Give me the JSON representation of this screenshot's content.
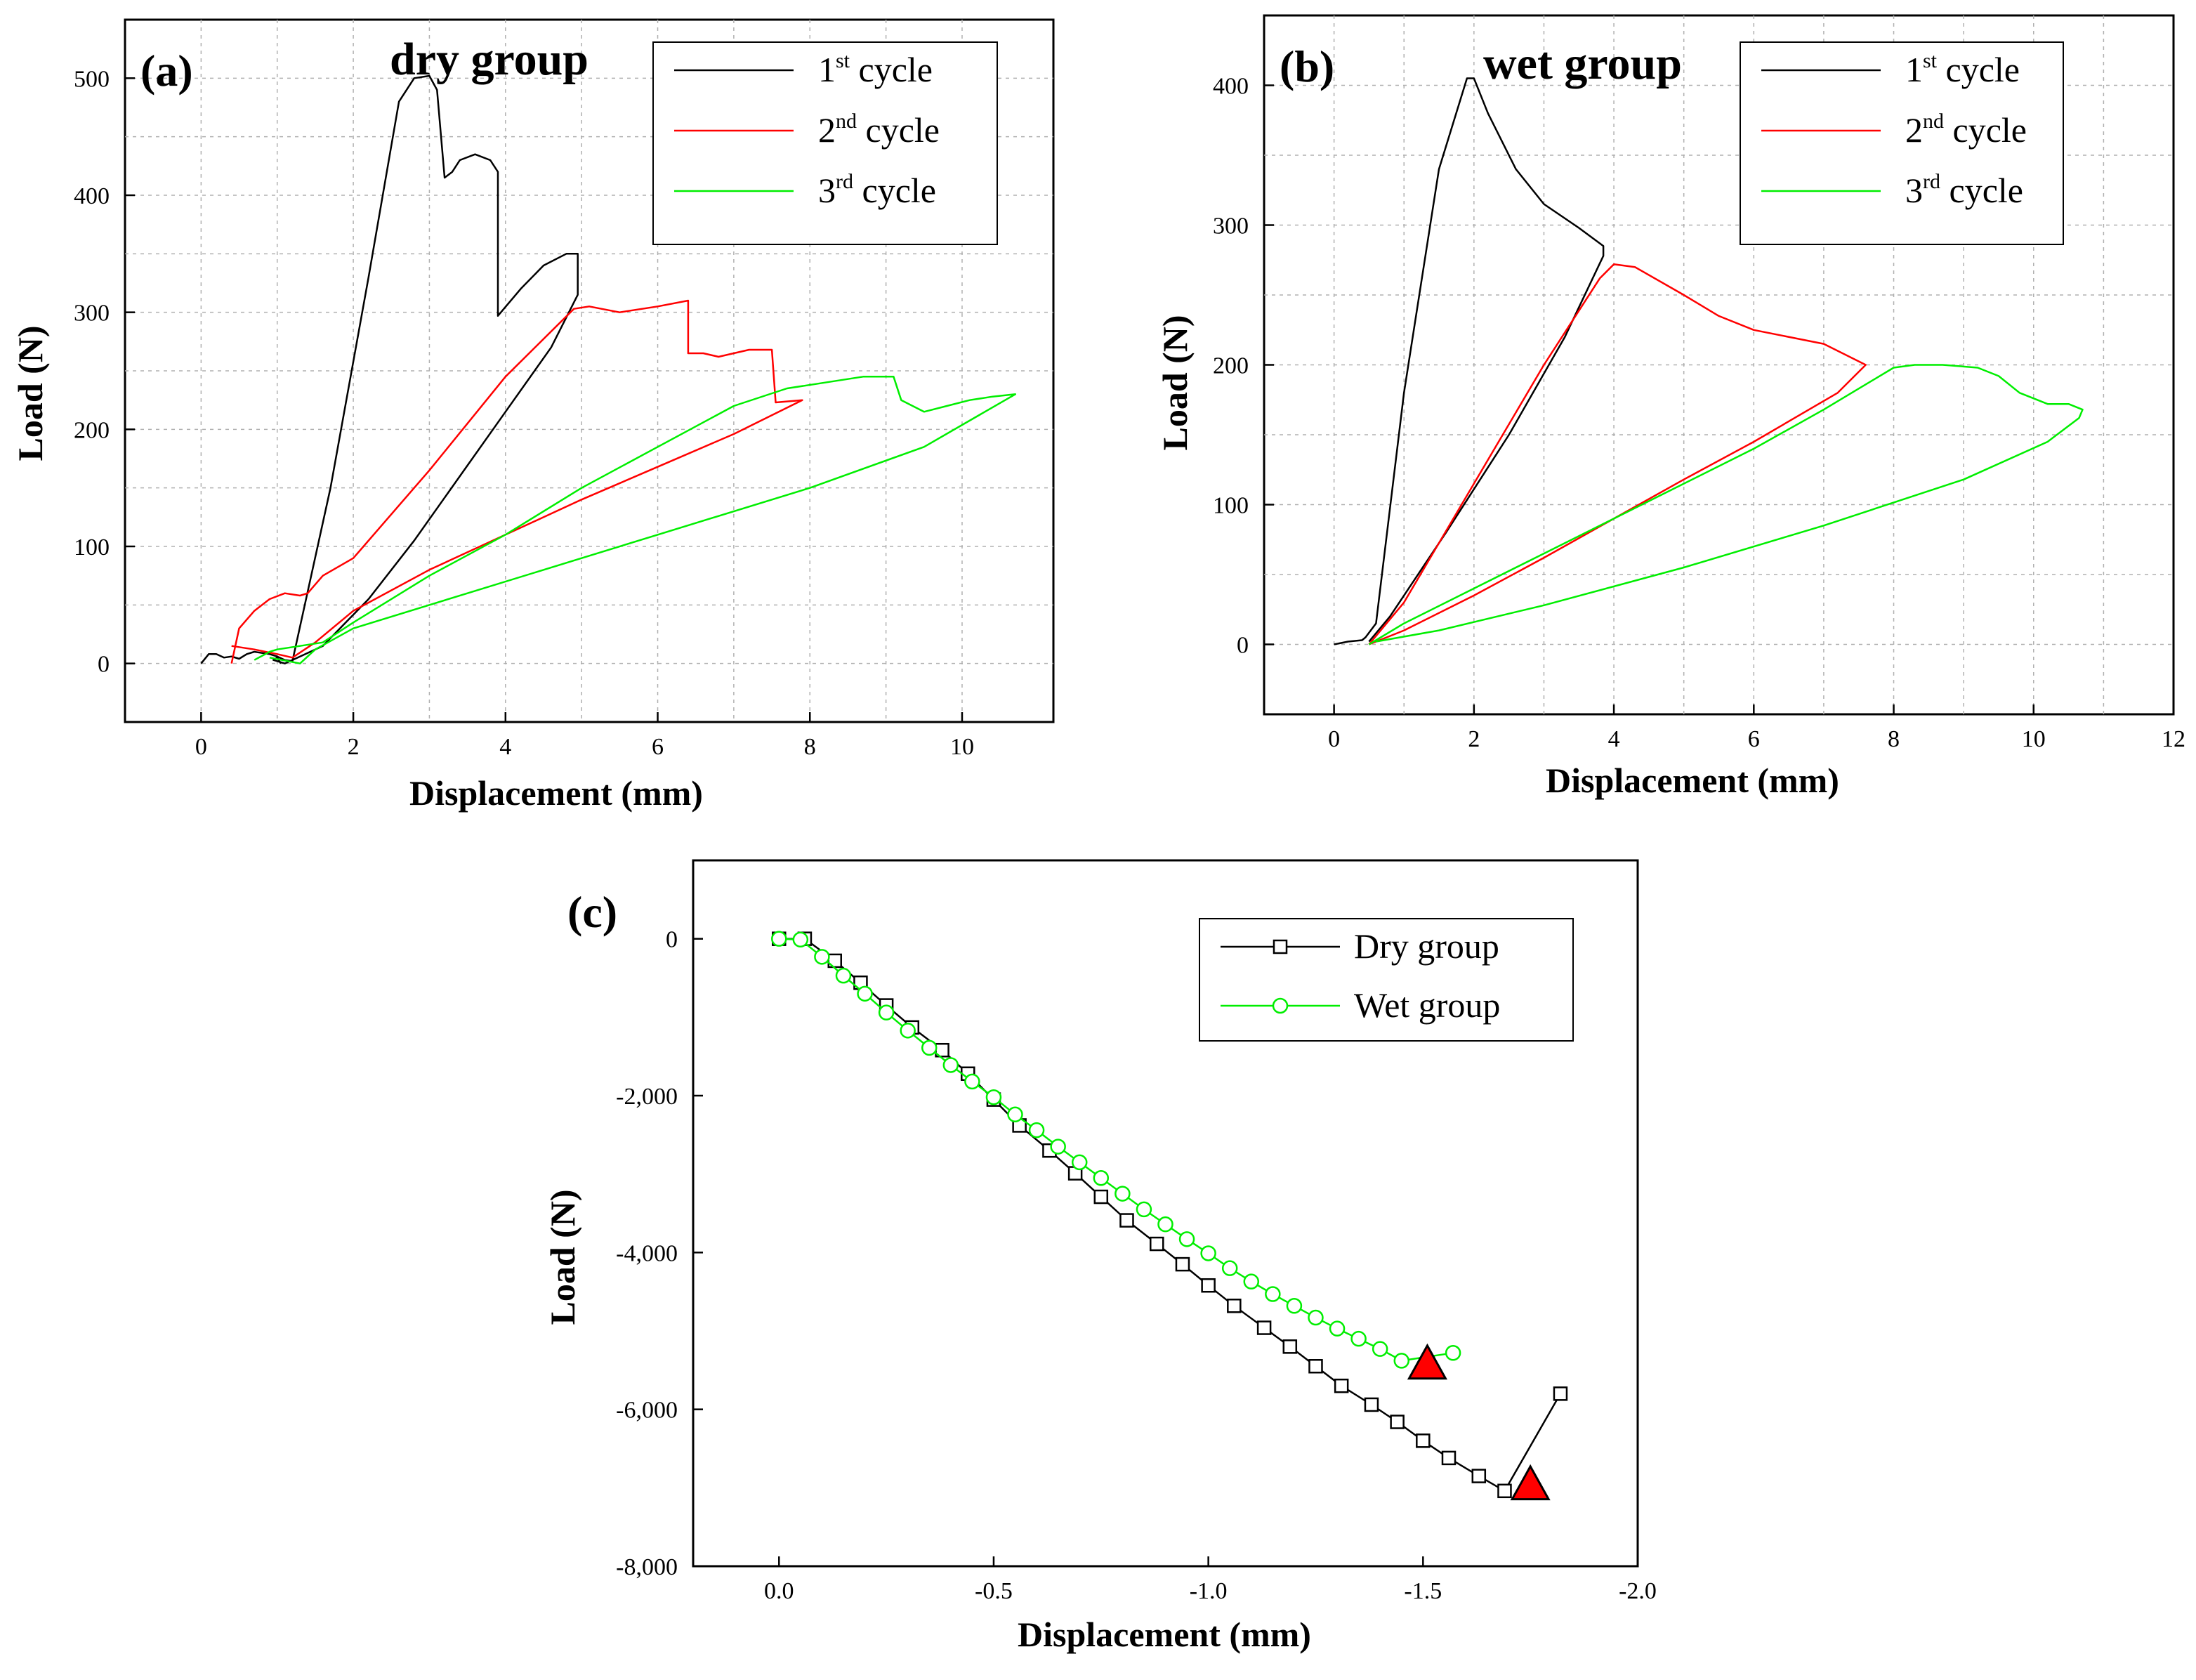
{
  "chart_data": [
    {
      "id": "a",
      "type": "line",
      "panel_label": "(a)",
      "title": "dry group",
      "xlabel": "Displacement (mm)",
      "ylabel": "Load (N)",
      "xlim": [
        -1,
        11.2
      ],
      "ylim": [
        -50,
        550
      ],
      "xticks": [
        0,
        2,
        4,
        6,
        8,
        10
      ],
      "yticks": [
        0,
        100,
        200,
        300,
        400,
        500
      ],
      "xtick_labels": [
        "0",
        "2",
        "4",
        "6",
        "8",
        "10"
      ],
      "ytick_labels": [
        "0",
        "100",
        "200",
        "300",
        "400",
        "500"
      ],
      "grid": true,
      "legend": "top-right",
      "series": [
        {
          "name": "1st cycle",
          "label_main": "1",
          "label_sup": "st",
          "label_tail": " cycle",
          "color": "#000000",
          "x": [
            0.0,
            0.1,
            0.2,
            0.3,
            0.4,
            0.5,
            0.6,
            0.7,
            0.8,
            0.9,
            1.0,
            1.1,
            1.2,
            1.7,
            2.2,
            2.6,
            2.8,
            3.0,
            3.1,
            3.2,
            3.3,
            3.4,
            3.6,
            3.8,
            3.9,
            3.9,
            4.2,
            4.5,
            4.8,
            4.95,
            4.95,
            4.6,
            4.0,
            3.4,
            2.8,
            2.2,
            1.6,
            1.1,
            0.95,
            1.0,
            1.05
          ],
          "y": [
            0,
            8,
            8,
            5,
            6,
            4,
            8,
            10,
            9,
            8,
            6,
            3,
            2,
            150,
            330,
            480,
            500,
            502,
            490,
            415,
            420,
            430,
            435,
            430,
            420,
            297,
            320,
            340,
            350,
            350,
            315,
            270,
            215,
            160,
            105,
            55,
            15,
            0,
            3,
            5,
            0
          ]
        },
        {
          "name": "2nd cycle",
          "label_main": "2",
          "label_sup": "nd",
          "label_tail": " cycle",
          "color": "#ff0000",
          "x": [
            0.4,
            0.5,
            0.7,
            0.9,
            1.1,
            1.3,
            1.4,
            1.6,
            2.0,
            3.0,
            4.0,
            4.9,
            5.1,
            5.5,
            6.0,
            6.4,
            6.4,
            6.6,
            6.8,
            7.2,
            7.5,
            7.55,
            7.9,
            7.0,
            6.0,
            5.0,
            4.0,
            3.0,
            2.0,
            1.5,
            1.2,
            1.0,
            0.7,
            0.4
          ],
          "y": [
            0,
            30,
            45,
            55,
            60,
            58,
            60,
            75,
            90,
            165,
            245,
            303,
            305,
            300,
            305,
            310,
            265,
            265,
            262,
            268,
            268,
            223,
            225,
            196,
            168,
            140,
            110,
            80,
            45,
            18,
            5,
            8,
            12,
            15
          ]
        },
        {
          "name": "3rd cycle",
          "label_main": "3",
          "label_sup": "rd",
          "label_tail": " cycle",
          "color": "#00ee00",
          "x": [
            0.7,
            0.9,
            1.0,
            1.3,
            1.6,
            2.0,
            3.0,
            4.0,
            5.0,
            6.0,
            7.0,
            7.7,
            8.2,
            8.7,
            9.1,
            9.2,
            9.5,
            9.8,
            10.1,
            10.4,
            10.7,
            9.5,
            8.0,
            6.5,
            5.0,
            3.5,
            2.0,
            1.5,
            1.3,
            0.9
          ],
          "y": [
            3,
            10,
            12,
            15,
            18,
            35,
            75,
            110,
            150,
            185,
            220,
            235,
            240,
            245,
            245,
            225,
            215,
            220,
            225,
            228,
            230,
            185,
            150,
            120,
            90,
            60,
            30,
            12,
            0,
            5
          ]
        }
      ]
    },
    {
      "id": "b",
      "type": "line",
      "panel_label": "(b)",
      "title": "wet group",
      "xlabel": "Displacement (mm)",
      "ylabel": "Load (N)",
      "xlim": [
        -1,
        12
      ],
      "ylim": [
        -50,
        450
      ],
      "xticks": [
        0,
        2,
        4,
        6,
        8,
        10,
        12
      ],
      "yticks": [
        0,
        100,
        200,
        300,
        400
      ],
      "xtick_labels": [
        "0",
        "2",
        "4",
        "6",
        "8",
        "10",
        "12"
      ],
      "ytick_labels": [
        "0",
        "100",
        "200",
        "300",
        "400"
      ],
      "grid": true,
      "legend": "top-right",
      "series": [
        {
          "name": "1st cycle",
          "label_main": "1",
          "label_sup": "st",
          "label_tail": " cycle",
          "color": "#000000",
          "x": [
            0.0,
            0.2,
            0.4,
            0.45,
            0.6,
            1.0,
            1.5,
            1.9,
            2.0,
            2.2,
            2.6,
            3.0,
            3.5,
            3.85,
            3.85,
            3.3,
            2.5,
            1.6,
            0.8,
            0.5
          ],
          "y": [
            0,
            2,
            3,
            5,
            15,
            180,
            340,
            405,
            405,
            380,
            340,
            315,
            298,
            285,
            278,
            220,
            150,
            80,
            20,
            2
          ]
        },
        {
          "name": "2nd cycle",
          "label_main": "2",
          "label_sup": "nd",
          "label_tail": " cycle",
          "color": "#ff0000",
          "x": [
            0.5,
            1.0,
            2.0,
            3.0,
            3.8,
            4.0,
            4.3,
            5.0,
            5.5,
            6.0,
            7.0,
            7.6,
            7.2,
            6.0,
            5.0,
            4.0,
            3.0,
            2.0,
            1.0,
            0.5
          ],
          "y": [
            0,
            30,
            115,
            200,
            262,
            272,
            270,
            250,
            235,
            225,
            215,
            200,
            180,
            145,
            118,
            90,
            62,
            35,
            10,
            0
          ]
        },
        {
          "name": "3rd cycle",
          "label_main": "3",
          "label_sup": "rd",
          "label_tail": " cycle",
          "color": "#00ee00",
          "x": [
            0.5,
            1.0,
            2.0,
            3.0,
            4.0,
            5.0,
            6.0,
            7.0,
            8.0,
            8.3,
            8.7,
            9.2,
            9.5,
            9.8,
            10.2,
            10.5,
            10.7,
            10.65,
            10.2,
            9.0,
            7.0,
            5.0,
            3.0,
            1.5,
            0.6
          ],
          "y": [
            0,
            15,
            40,
            65,
            90,
            115,
            140,
            168,
            198,
            200,
            200,
            198,
            192,
            180,
            172,
            172,
            168,
            162,
            145,
            118,
            85,
            55,
            28,
            10,
            2
          ]
        }
      ]
    },
    {
      "id": "c",
      "type": "line",
      "panel_label": "(c)",
      "title": "",
      "xlabel": "Displacement (mm)",
      "ylabel": "Load (N)",
      "xlim": [
        0.2,
        -2.0
      ],
      "ylim": [
        -8000,
        1000
      ],
      "xticks": [
        0.0,
        -0.5,
        -1.0,
        -1.5,
        -2.0
      ],
      "yticks": [
        0,
        -2000,
        -4000,
        -6000,
        -8000
      ],
      "xtick_labels": [
        "0.0",
        "-0.5",
        "-1.0",
        "-1.5",
        "-2.0"
      ],
      "ytick_labels": [
        "0",
        "-2,000",
        "-4,000",
        "-6,000",
        "-8,000"
      ],
      "grid": false,
      "legend": "top-right",
      "series": [
        {
          "name": "Dry group",
          "label_main": "Dry  group",
          "color": "#000000",
          "marker": "square",
          "x": [
            0.0,
            -0.06,
            -0.13,
            -0.19,
            -0.25,
            -0.31,
            -0.38,
            -0.44,
            -0.5,
            -0.56,
            -0.63,
            -0.69,
            -0.75,
            -0.81,
            -0.88,
            -0.94,
            -1.0,
            -1.06,
            -1.13,
            -1.19,
            -1.25,
            -1.31,
            -1.38,
            -1.44,
            -1.5,
            -1.56,
            -1.63,
            -1.69,
            -1.82
          ],
          "y": [
            0,
            0,
            -280,
            -560,
            -850,
            -1130,
            -1420,
            -1720,
            -2050,
            -2380,
            -2700,
            -2990,
            -3290,
            -3590,
            -3890,
            -4150,
            -4420,
            -4680,
            -4960,
            -5200,
            -5450,
            -5700,
            -5940,
            -6160,
            -6400,
            -6620,
            -6850,
            -7040,
            -5800
          ]
        },
        {
          "name": "Wet group",
          "label_main": "Wet  group",
          "color": "#00ee00",
          "marker": "circle",
          "x": [
            0.0,
            -0.05,
            -0.1,
            -0.15,
            -0.2,
            -0.25,
            -0.3,
            -0.35,
            -0.4,
            -0.45,
            -0.5,
            -0.55,
            -0.6,
            -0.65,
            -0.7,
            -0.75,
            -0.8,
            -0.85,
            -0.9,
            -0.95,
            -1.0,
            -1.05,
            -1.1,
            -1.15,
            -1.2,
            -1.25,
            -1.3,
            -1.35,
            -1.4,
            -1.45,
            -1.57
          ],
          "y": [
            0,
            -10,
            -230,
            -470,
            -700,
            -940,
            -1170,
            -1390,
            -1610,
            -1820,
            -2020,
            -2240,
            -2440,
            -2650,
            -2850,
            -3050,
            -3250,
            -3450,
            -3640,
            -3830,
            -4010,
            -4200,
            -4370,
            -4530,
            -4680,
            -4830,
            -4970,
            -5100,
            -5230,
            -5380,
            -5280
          ]
        }
      ],
      "annotations": [
        {
          "type": "triangle",
          "color": "#ff0000",
          "x": -1.51,
          "y": -5420
        },
        {
          "type": "triangle",
          "color": "#ff0000",
          "x": -1.75,
          "y": -6960
        }
      ]
    }
  ]
}
